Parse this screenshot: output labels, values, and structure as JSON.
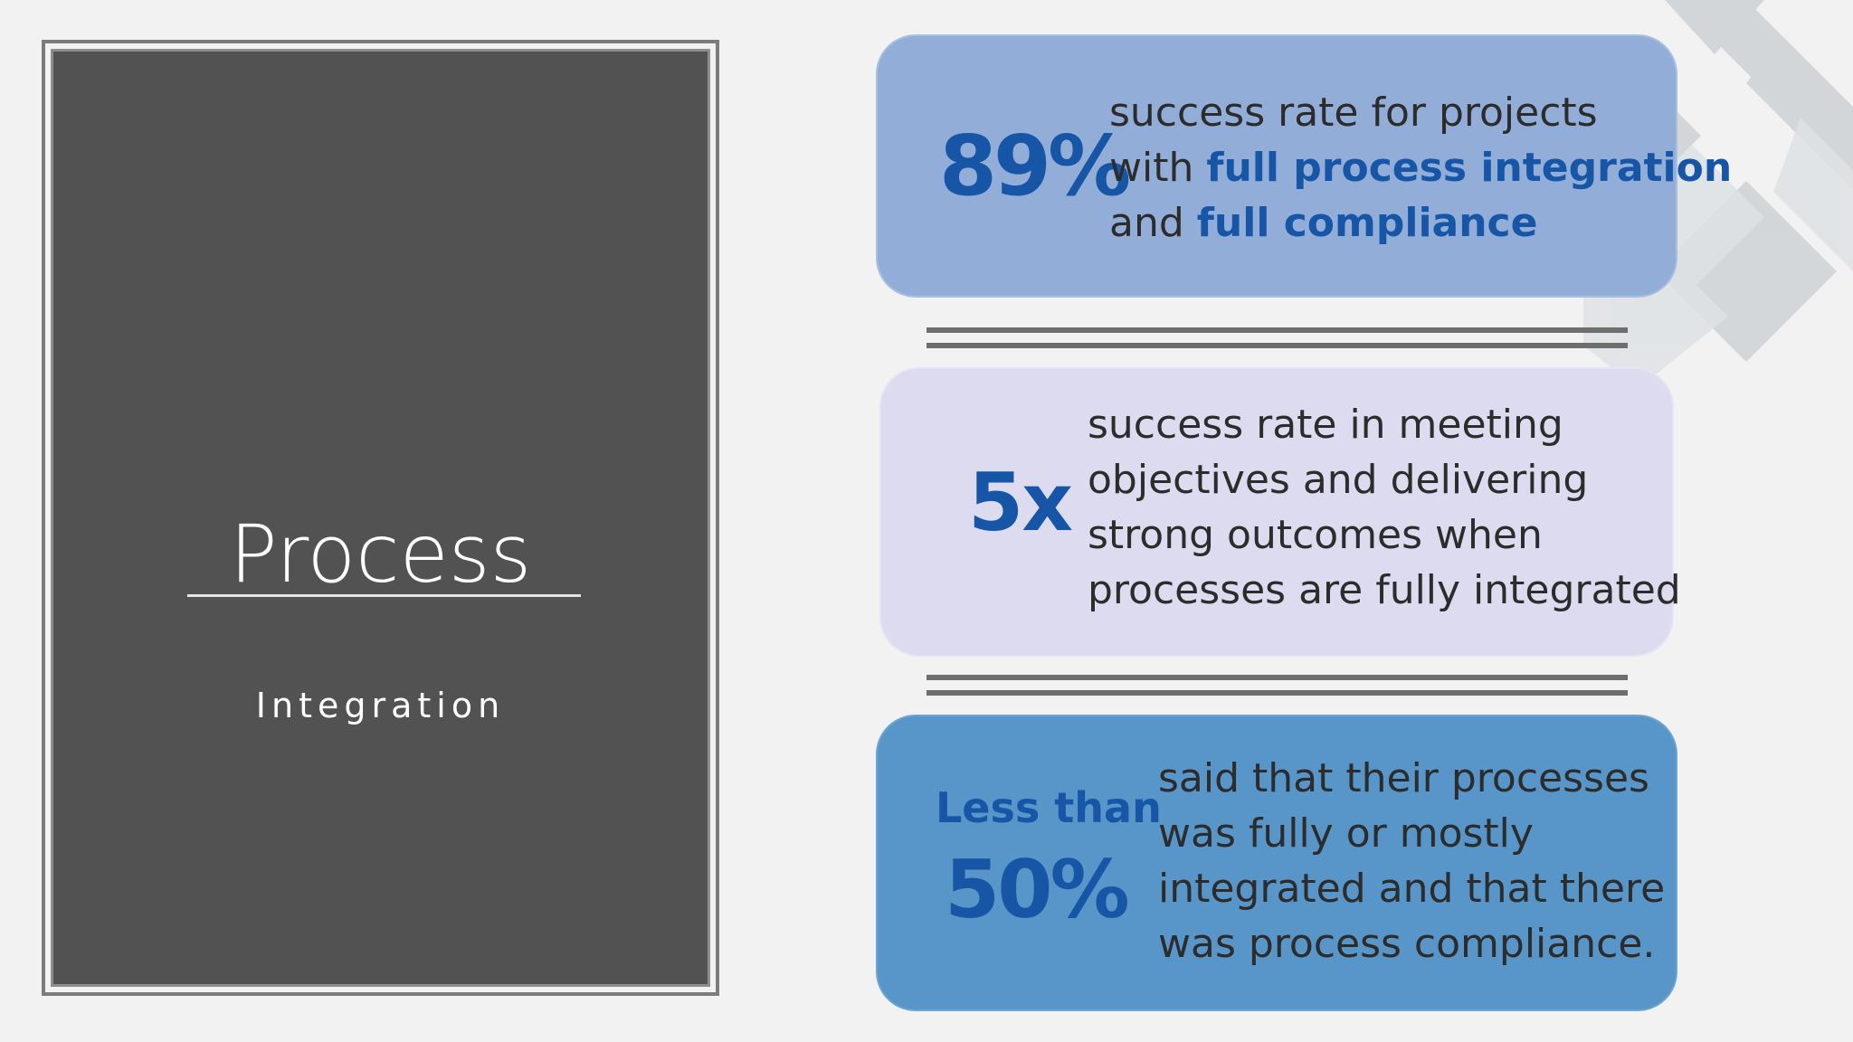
{
  "title_panel": {
    "title": "Process",
    "subtitle": "Integration"
  },
  "stats": [
    {
      "value": "89%",
      "lines": [
        {
          "parts": [
            {
              "text": "success rate for projects",
              "highlight": false
            }
          ]
        },
        {
          "parts": [
            {
              "text": "with ",
              "highlight": false
            },
            {
              "text": "full process integration",
              "highlight": true
            }
          ]
        },
        {
          "parts": [
            {
              "text": "and ",
              "highlight": false
            },
            {
              "text": "full compliance",
              "highlight": true
            }
          ]
        }
      ]
    },
    {
      "value": "5x",
      "lines": [
        {
          "parts": [
            {
              "text": "success rate in meeting",
              "highlight": false
            }
          ]
        },
        {
          "parts": [
            {
              "text": "objectives and delivering",
              "highlight": false
            }
          ]
        },
        {
          "parts": [
            {
              "text": "strong outcomes when",
              "highlight": false
            }
          ]
        },
        {
          "parts": [
            {
              "text": "processes are fully integrated",
              "highlight": false
            }
          ]
        }
      ]
    },
    {
      "prefix": "Less than",
      "value": "50%",
      "lines": [
        {
          "parts": [
            {
              "text": "said that their processes",
              "highlight": false
            }
          ]
        },
        {
          "parts": [
            {
              "text": "was fully or mostly",
              "highlight": false
            }
          ]
        },
        {
          "parts": [
            {
              "text": "integrated and that there",
              "highlight": false
            }
          ]
        },
        {
          "parts": [
            {
              "text": "was process compliance.",
              "highlight": false
            }
          ]
        }
      ]
    }
  ],
  "colors": {
    "accent": "#1755a6",
    "panel_dark": "#525252",
    "card_1": "#92aed8",
    "card_2": "#dddbf0",
    "card_3": "#5895c8",
    "background": "#f2f2f3"
  }
}
